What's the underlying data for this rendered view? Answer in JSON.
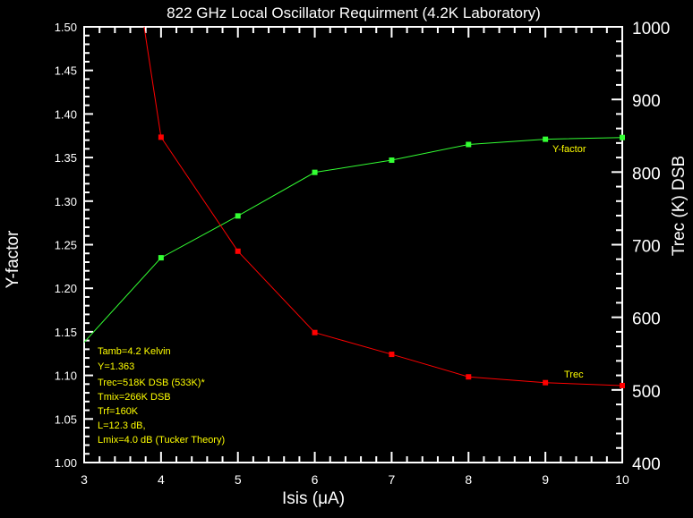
{
  "chart_data": {
    "type": "line",
    "title": "822 GHz Local Oscillator Requirment (4.2K Laboratory)",
    "xlabel": "Isis (μA)",
    "ylabel": "Y-factor",
    "y2label": "Trec (K) DSB",
    "xlim": [
      3,
      10
    ],
    "ylim": [
      1.0,
      1.5
    ],
    "y2lim": [
      400,
      1000
    ],
    "xticks": [
      "3",
      "4",
      "5",
      "6",
      "7",
      "8",
      "9",
      "10"
    ],
    "yticks": [
      "1.00",
      "1.05",
      "1.10",
      "1.15",
      "1.20",
      "1.25",
      "1.30",
      "1.35",
      "1.40",
      "1.45",
      "1.50"
    ],
    "y2ticks": [
      "400",
      "500",
      "600",
      "700",
      "800",
      "900",
      "1000"
    ],
    "series": [
      {
        "name": "Y-factor",
        "axis": "left",
        "color": "#33ff33",
        "x": [
          3,
          4,
          5,
          6,
          7,
          8,
          9,
          10
        ],
        "y": [
          1.138,
          1.235,
          1.283,
          1.333,
          1.347,
          1.365,
          1.371,
          1.373
        ]
      },
      {
        "name": "Trec",
        "axis": "right",
        "color": "#ff0000",
        "x": [
          3.78,
          4,
          5,
          6,
          7,
          8,
          9,
          10
        ],
        "y": [
          1000,
          848,
          691,
          579,
          549,
          518,
          510,
          506
        ]
      }
    ],
    "series_labels": {
      "yfactor": "Y-factor",
      "trec": "Trec"
    },
    "annotations": [
      "Tamb=4.2 Kelvin",
      "Y=1.363",
      "Trec=518K DSB (533K)*",
      "Tmix=266K DSB",
      "Trf=160K",
      "L=12.3 dB,",
      "Lmix=4.0 dB (Tucker Theory)"
    ],
    "grid": false
  }
}
